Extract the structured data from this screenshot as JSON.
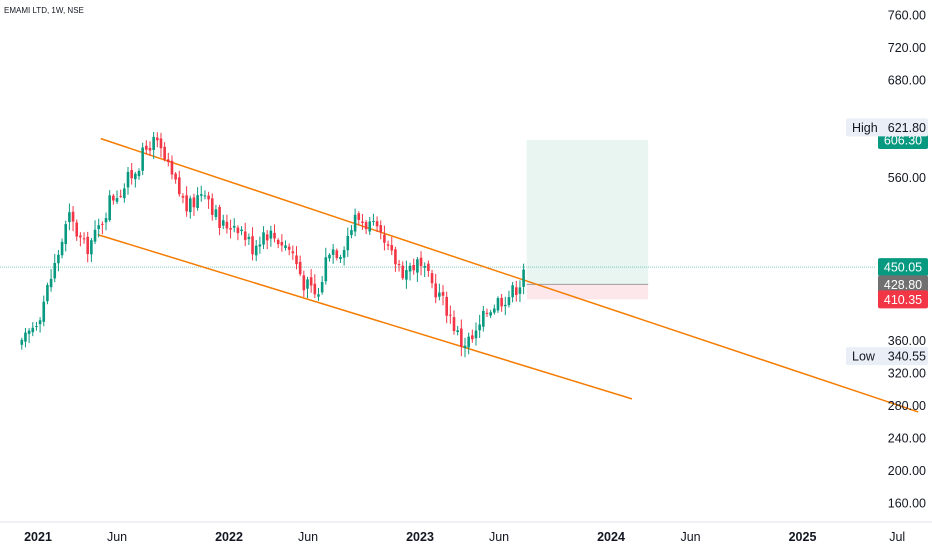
{
  "chart_data": {
    "type": "candlestick",
    "title": "EMAMI LTD, 1W, NSE",
    "y_axis": {
      "min": 140,
      "max": 770,
      "ticks": [
        160,
        200,
        240,
        280,
        320,
        360,
        560,
        680,
        720,
        760
      ]
    },
    "x_axis": {
      "start": "2020-12-01",
      "end": "2025-09-01",
      "ticks": [
        {
          "label": "2021",
          "date": "2021-01-01",
          "bold": true
        },
        {
          "label": "Jun",
          "date": "2021-06-01",
          "bold": false
        },
        {
          "label": "2022",
          "date": "2022-01-01",
          "bold": true
        },
        {
          "label": "Jun",
          "date": "2022-06-01",
          "bold": false
        },
        {
          "label": "2023",
          "date": "2023-01-01",
          "bold": true
        },
        {
          "label": "Jun",
          "date": "2023-06-01",
          "bold": false
        },
        {
          "label": "2024",
          "date": "2024-01-01",
          "bold": true
        },
        {
          "label": "Jun",
          "date": "2024-06-01",
          "bold": false
        },
        {
          "label": "2025",
          "date": "2025-01-01",
          "bold": true
        },
        {
          "label": "Jul",
          "date": "2025-07-01",
          "bold": false
        }
      ]
    },
    "price_path": [
      [
        "2020-12-01",
        352
      ],
      [
        "2021-01-05",
        395
      ],
      [
        "2021-02-01",
        450
      ],
      [
        "2021-03-01",
        512
      ],
      [
        "2021-04-01",
        472
      ],
      [
        "2021-04-22",
        490
      ],
      [
        "2021-05-20",
        535
      ],
      [
        "2021-06-15",
        550
      ],
      [
        "2021-07-10",
        575
      ],
      [
        "2021-08-05",
        605
      ],
      [
        "2021-08-20",
        597
      ],
      [
        "2021-09-15",
        558
      ],
      [
        "2021-10-15",
        520
      ],
      [
        "2021-11-15",
        550
      ],
      [
        "2021-12-15",
        500
      ],
      [
        "2022-01-15",
        505
      ],
      [
        "2022-02-15",
        475
      ],
      [
        "2022-03-10",
        495
      ],
      [
        "2022-04-05",
        485
      ],
      [
        "2022-05-01",
        470
      ],
      [
        "2022-05-25",
        430
      ],
      [
        "2022-06-20",
        412
      ],
      [
        "2022-07-10",
        475
      ],
      [
        "2022-08-01",
        470
      ],
      [
        "2022-09-01",
        512
      ],
      [
        "2022-10-01",
        500
      ],
      [
        "2022-11-01",
        468
      ],
      [
        "2022-12-01",
        445
      ],
      [
        "2022-12-25",
        455
      ],
      [
        "2023-02-01",
        422
      ],
      [
        "2023-02-25",
        395
      ],
      [
        "2023-03-20",
        357
      ],
      [
        "2023-04-15",
        362
      ],
      [
        "2023-05-10",
        398
      ],
      [
        "2023-06-01",
        410
      ],
      [
        "2023-06-25",
        418
      ],
      [
        "2023-07-10",
        432
      ],
      [
        "2023-07-24",
        445
      ]
    ],
    "trendlines": [
      {
        "name": "upper-trendline",
        "from": [
          "2021-05-01",
          608
        ],
        "to": [
          "2025-08-10",
          272
        ],
        "color": "#f57c00"
      },
      {
        "name": "lower-trendline",
        "from": [
          "2021-04-25",
          490
        ],
        "to": [
          "2024-02-10",
          288
        ],
        "color": "#f57c00"
      }
    ],
    "position": {
      "start": "2023-07-24",
      "end": "2024-03-12",
      "entry": 428.8,
      "target": 606.3,
      "stop": 410.35,
      "profit_color": "#e8f5f1",
      "loss_color": "#fde7ea"
    },
    "current_price_line": 450.05,
    "price_tags": [
      {
        "label": "450.05",
        "value": 450.05,
        "color": "#089981"
      },
      {
        "label": "428.80",
        "value": 428.8,
        "color": "#707070"
      },
      {
        "label": "410.35",
        "value": 410.35,
        "color": "#f23645"
      },
      {
        "label": "606.30",
        "value": 606.3,
        "color": "#089981"
      }
    ],
    "high": {
      "label": "High",
      "value": "621.80"
    },
    "low": {
      "label": "Low",
      "value": "340.55"
    },
    "colors": {
      "up": "#089981",
      "down": "#f23645",
      "axis": "#131722"
    }
  }
}
